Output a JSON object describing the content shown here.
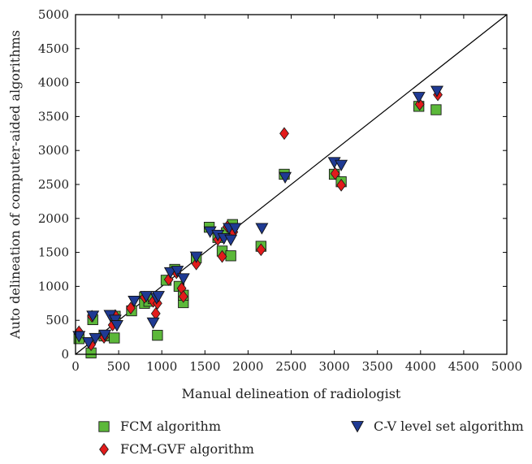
{
  "chart_data": {
    "type": "scatter",
    "title": "",
    "xlabel": "Manual delineation of radiologist",
    "ylabel": "Auto delineation of computer-aided algorithms",
    "xlim": [
      0,
      5000
    ],
    "ylim": [
      0,
      5000
    ],
    "xticks": [
      "0",
      "500",
      "1000",
      "1500",
      "2000",
      "2500",
      "3000",
      "3500",
      "4000",
      "4500",
      "5000"
    ],
    "yticks": [
      "0",
      "500",
      "1000",
      "1500",
      "2000",
      "2500",
      "3000",
      "3500",
      "4000",
      "4500",
      "5000"
    ],
    "grid": false,
    "reference_line": {
      "from": [
        0,
        0
      ],
      "to": [
        5000,
        5000
      ],
      "color": "#000000"
    },
    "legend_position": "bottom",
    "series": [
      {
        "name": "FCM algorithm",
        "marker": "square",
        "color": "#5cb83a",
        "points": [
          [
            40,
            230
          ],
          [
            180,
            20
          ],
          [
            200,
            510
          ],
          [
            330,
            270
          ],
          [
            450,
            240
          ],
          [
            460,
            560
          ],
          [
            650,
            640
          ],
          [
            800,
            840
          ],
          [
            800,
            750
          ],
          [
            850,
            780
          ],
          [
            900,
            820
          ],
          [
            950,
            280
          ],
          [
            1050,
            1090
          ],
          [
            1150,
            1250
          ],
          [
            1200,
            1000
          ],
          [
            1250,
            760
          ],
          [
            1250,
            870
          ],
          [
            1400,
            1420
          ],
          [
            1550,
            1870
          ],
          [
            1650,
            1720
          ],
          [
            1700,
            1520
          ],
          [
            1750,
            1790
          ],
          [
            1800,
            1450
          ],
          [
            1820,
            1910
          ],
          [
            2150,
            1590
          ],
          [
            2420,
            2650
          ],
          [
            3000,
            2650
          ],
          [
            3080,
            2540
          ],
          [
            3980,
            3650
          ],
          [
            4180,
            3600
          ]
        ]
      },
      {
        "name": "FCM-GVF algorithm",
        "marker": "diamond",
        "color": "#e21b1b",
        "points": [
          [
            40,
            330
          ],
          [
            180,
            140
          ],
          [
            190,
            560
          ],
          [
            330,
            250
          ],
          [
            430,
            430
          ],
          [
            460,
            570
          ],
          [
            640,
            680
          ],
          [
            800,
            840
          ],
          [
            900,
            780
          ],
          [
            930,
            600
          ],
          [
            950,
            750
          ],
          [
            1080,
            1100
          ],
          [
            1170,
            1200
          ],
          [
            1230,
            970
          ],
          [
            1250,
            850
          ],
          [
            1400,
            1330
          ],
          [
            1650,
            1690
          ],
          [
            1700,
            1440
          ],
          [
            1760,
            1880
          ],
          [
            1830,
            1800
          ],
          [
            2150,
            1540
          ],
          [
            2420,
            3250
          ],
          [
            3010,
            2660
          ],
          [
            3080,
            2490
          ],
          [
            3990,
            3680
          ],
          [
            4200,
            3820
          ]
        ]
      },
      {
        "name": "C-V level set algorithm",
        "marker": "triangle-down",
        "color": "#1f3a93",
        "points": [
          [
            40,
            260
          ],
          [
            150,
            170
          ],
          [
            200,
            560
          ],
          [
            230,
            230
          ],
          [
            340,
            280
          ],
          [
            400,
            570
          ],
          [
            460,
            500
          ],
          [
            480,
            420
          ],
          [
            680,
            780
          ],
          [
            820,
            850
          ],
          [
            900,
            460
          ],
          [
            940,
            820
          ],
          [
            960,
            850
          ],
          [
            1100,
            1200
          ],
          [
            1180,
            1220
          ],
          [
            1250,
            1110
          ],
          [
            1400,
            1430
          ],
          [
            1560,
            1800
          ],
          [
            1650,
            1750
          ],
          [
            1720,
            1700
          ],
          [
            1780,
            1850
          ],
          [
            1800,
            1680
          ],
          [
            1850,
            1850
          ],
          [
            2160,
            1850
          ],
          [
            2430,
            2600
          ],
          [
            3000,
            2820
          ],
          [
            3080,
            2780
          ],
          [
            3980,
            3780
          ],
          [
            4190,
            3870
          ]
        ]
      }
    ]
  }
}
